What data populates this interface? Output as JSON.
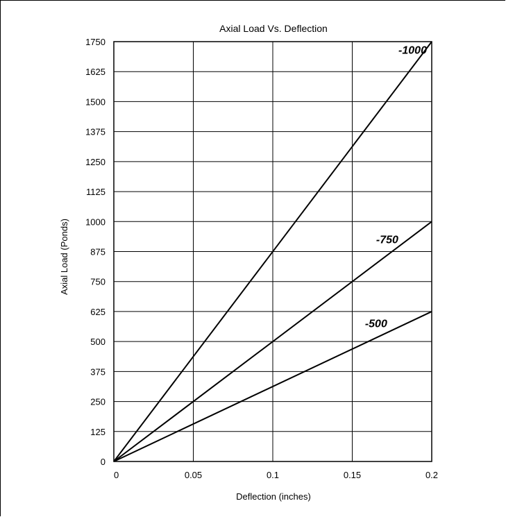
{
  "chart_data": {
    "type": "line",
    "title": "Axial Load Vs. Deflection",
    "xlabel": "Deflection (inches)",
    "ylabel": "Axial Load (Ponds)",
    "xlim": [
      0,
      0.2
    ],
    "ylim": [
      0,
      1750
    ],
    "x_ticks": [
      "0",
      "0.05",
      "0.1",
      "0.15",
      "0.2"
    ],
    "x_tick_values": [
      0,
      0.05,
      0.1,
      0.15,
      0.2
    ],
    "y_ticks": [
      "0",
      "125",
      "250",
      "375",
      "500",
      "625",
      "750",
      "875",
      "1000",
      "1125",
      "1250",
      "1375",
      "1500",
      "1625",
      "1750"
    ],
    "y_tick_values": [
      0,
      125,
      250,
      375,
      500,
      625,
      750,
      875,
      1000,
      1125,
      1250,
      1375,
      1500,
      1625,
      1750
    ],
    "grid": true,
    "series": [
      {
        "name": "-1000",
        "x": [
          0,
          0.2
        ],
        "values": [
          0,
          1750
        ],
        "label_at": [
          0.188,
          1700
        ]
      },
      {
        "name": "-750",
        "x": [
          0,
          0.2
        ],
        "values": [
          0,
          1000
        ],
        "label_at": [
          0.172,
          910
        ]
      },
      {
        "name": "-500",
        "x": [
          0,
          0.2
        ],
        "values": [
          0,
          625
        ],
        "label_at": [
          0.165,
          560
        ]
      }
    ]
  }
}
